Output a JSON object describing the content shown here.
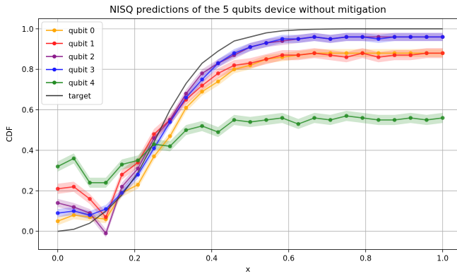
{
  "chart_data": {
    "type": "line",
    "title": "NISQ predictions of the 5 qubits device without mitigation",
    "xlabel": "x",
    "ylabel": "CDF",
    "xlim": [
      -0.05,
      1.04
    ],
    "ylim": [
      -0.09,
      1.05
    ],
    "xticks": [
      0.0,
      0.2,
      0.4,
      0.6,
      0.8,
      1.0
    ],
    "xtick_labels": [
      "0.0",
      "0.2",
      "0.4",
      "0.6",
      "0.8",
      "1.0"
    ],
    "yticks": [
      0.0,
      0.2,
      0.4,
      0.6,
      0.8,
      1.0
    ],
    "ytick_labels": [
      "0.0",
      "0.2",
      "0.4",
      "0.6",
      "0.8",
      "1.0"
    ],
    "grid": true,
    "legend_position": "top-left",
    "x": [
      0.0,
      0.0417,
      0.0833,
      0.125,
      0.1667,
      0.2083,
      0.25,
      0.2917,
      0.3333,
      0.375,
      0.4167,
      0.4583,
      0.5,
      0.5417,
      0.5833,
      0.625,
      0.6667,
      0.7083,
      0.75,
      0.7917,
      0.8333,
      0.875,
      0.9167,
      0.9583,
      1.0
    ],
    "series": [
      {
        "name": "qubit 0",
        "color": "#ffa500",
        "values": [
          0.05,
          0.08,
          0.07,
          0.06,
          0.19,
          0.23,
          0.37,
          0.47,
          0.61,
          0.69,
          0.74,
          0.8,
          0.82,
          0.85,
          0.86,
          0.87,
          0.88,
          0.88,
          0.88,
          0.88,
          0.88,
          0.88,
          0.88,
          0.88,
          0.88
        ],
        "band": 0.02
      },
      {
        "name": "qubit 1",
        "color": "#ff1f1f",
        "values": [
          0.21,
          0.22,
          0.16,
          0.07,
          0.28,
          0.34,
          0.48,
          0.55,
          0.65,
          0.72,
          0.78,
          0.82,
          0.83,
          0.85,
          0.87,
          0.87,
          0.88,
          0.87,
          0.86,
          0.88,
          0.86,
          0.87,
          0.87,
          0.88,
          0.88
        ],
        "band": 0.025
      },
      {
        "name": "qubit 2",
        "color": "#8b1a8b",
        "values": [
          0.14,
          0.12,
          0.09,
          -0.01,
          0.22,
          0.31,
          0.46,
          0.55,
          0.68,
          0.78,
          0.83,
          0.87,
          0.91,
          0.93,
          0.94,
          0.95,
          0.96,
          0.95,
          0.96,
          0.96,
          0.96,
          0.96,
          0.96,
          0.96,
          0.96
        ],
        "band": 0.02
      },
      {
        "name": "qubit 3",
        "color": "#1a1aff",
        "values": [
          0.09,
          0.1,
          0.08,
          0.11,
          0.19,
          0.28,
          0.41,
          0.54,
          0.66,
          0.75,
          0.83,
          0.88,
          0.91,
          0.93,
          0.95,
          0.95,
          0.96,
          0.95,
          0.96,
          0.96,
          0.95,
          0.96,
          0.96,
          0.96,
          0.96
        ],
        "band": 0.02
      },
      {
        "name": "qubit 4",
        "color": "#228b22",
        "values": [
          0.32,
          0.36,
          0.24,
          0.24,
          0.33,
          0.35,
          0.43,
          0.42,
          0.5,
          0.52,
          0.49,
          0.55,
          0.54,
          0.55,
          0.56,
          0.53,
          0.56,
          0.55,
          0.57,
          0.56,
          0.55,
          0.55,
          0.56,
          0.55,
          0.56
        ],
        "band": 0.025
      },
      {
        "name": "target",
        "color": "#333333",
        "values": [
          0.0,
          0.01,
          0.04,
          0.1,
          0.18,
          0.29,
          0.44,
          0.6,
          0.73,
          0.83,
          0.89,
          0.94,
          0.96,
          0.98,
          0.99,
          0.995,
          0.998,
          0.999,
          1.0,
          1.0,
          1.0,
          1.0,
          1.0,
          1.0,
          1.0
        ],
        "markers": false
      }
    ]
  }
}
